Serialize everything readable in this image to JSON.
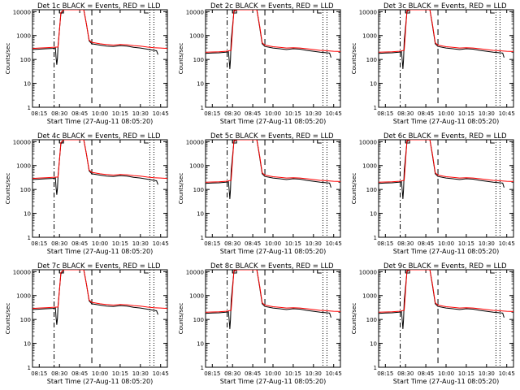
{
  "chart_data": [
    {
      "title": "Det 1c BLACK = Events, RED = LLD",
      "type": "line",
      "variant": "a"
    },
    {
      "title": "Det 2c BLACK = Events, RED = LLD",
      "type": "line",
      "variant": "b"
    },
    {
      "title": "Det 3c BLACK = Events, RED = LLD",
      "type": "line",
      "variant": "b"
    },
    {
      "title": "Det 4c BLACK = Events, RED = LLD",
      "type": "line",
      "variant": "a"
    },
    {
      "title": "Det 5c BLACK = Events, RED = LLD",
      "type": "line",
      "variant": "b"
    },
    {
      "title": "Det 6c BLACK = Events, RED = LLD",
      "type": "line",
      "variant": "b"
    },
    {
      "title": "Det 7c BLACK = Events, RED = LLD",
      "type": "line",
      "variant": "a"
    },
    {
      "title": "Det 8c BLACK = Events, RED = LLD",
      "type": "line",
      "variant": "b"
    },
    {
      "title": "Det 9c BLACK = Events, RED = LLD",
      "type": "line",
      "variant": "b"
    }
  ],
  "shared": {
    "ylabel": "Counts/sec",
    "xlabel": "Start Time (27-Aug-11 08:05:20)",
    "yscale": "log",
    "ylim": [
      1,
      12000
    ],
    "y_ticks": [
      "1",
      "10",
      "100",
      "1000",
      "10000"
    ],
    "x_ticks": [
      "08:15",
      "08:30",
      "08:45",
      "10:00",
      "10:15",
      "10:30",
      "10:45"
    ],
    "colors": {
      "events": "#000000",
      "lld": "#ff0000"
    }
  },
  "series_profiles": {
    "a": {
      "events": [
        [
          0,
          260
        ],
        [
          0.05,
          270
        ],
        [
          0.1,
          280
        ],
        [
          0.15,
          290
        ],
        [
          0.17,
          300
        ],
        [
          0.175,
          120
        ],
        [
          0.18,
          60
        ],
        [
          0.185,
          110
        ],
        [
          0.19,
          400
        ],
        [
          0.21,
          8000
        ],
        [
          0.23,
          15000
        ],
        [
          0.38,
          15000
        ],
        [
          0.4,
          3000
        ],
        [
          0.42,
          600
        ],
        [
          0.44,
          450
        ],
        [
          0.5,
          400
        ],
        [
          0.55,
          360
        ],
        [
          0.6,
          350
        ],
        [
          0.65,
          380
        ],
        [
          0.7,
          360
        ],
        [
          0.75,
          320
        ],
        [
          0.8,
          300
        ],
        [
          0.85,
          270
        ],
        [
          0.9,
          240
        ],
        [
          0.92,
          230
        ],
        [
          0.93,
          160
        ]
      ],
      "lld": [
        [
          0,
          290
        ],
        [
          0.05,
          300
        ],
        [
          0.1,
          310
        ],
        [
          0.15,
          320
        ],
        [
          0.19,
          330
        ],
        [
          0.21,
          9000
        ],
        [
          0.23,
          15000
        ],
        [
          0.38,
          15000
        ],
        [
          0.4,
          3000
        ],
        [
          0.42,
          650
        ],
        [
          0.44,
          520
        ],
        [
          0.5,
          450
        ],
        [
          0.55,
          420
        ],
        [
          0.6,
          400
        ],
        [
          0.65,
          420
        ],
        [
          0.7,
          410
        ],
        [
          0.75,
          380
        ],
        [
          0.8,
          360
        ],
        [
          0.85,
          330
        ],
        [
          0.9,
          310
        ],
        [
          0.95,
          300
        ],
        [
          1,
          290
        ]
      ]
    },
    "b": {
      "events": [
        [
          0,
          180
        ],
        [
          0.05,
          185
        ],
        [
          0.1,
          190
        ],
        [
          0.15,
          200
        ],
        [
          0.17,
          210
        ],
        [
          0.175,
          90
        ],
        [
          0.18,
          40
        ],
        [
          0.185,
          100
        ],
        [
          0.19,
          600
        ],
        [
          0.21,
          10000
        ],
        [
          0.23,
          15000
        ],
        [
          0.38,
          15000
        ],
        [
          0.4,
          2500
        ],
        [
          0.42,
          450
        ],
        [
          0.44,
          350
        ],
        [
          0.5,
          300
        ],
        [
          0.55,
          280
        ],
        [
          0.6,
          260
        ],
        [
          0.65,
          280
        ],
        [
          0.7,
          270
        ],
        [
          0.75,
          240
        ],
        [
          0.8,
          220
        ],
        [
          0.85,
          200
        ],
        [
          0.9,
          190
        ],
        [
          0.92,
          185
        ],
        [
          0.93,
          120
        ]
      ],
      "lld": [
        [
          0,
          200
        ],
        [
          0.05,
          205
        ],
        [
          0.1,
          210
        ],
        [
          0.15,
          220
        ],
        [
          0.19,
          240
        ],
        [
          0.21,
          11000
        ],
        [
          0.23,
          15000
        ],
        [
          0.38,
          15000
        ],
        [
          0.4,
          2800
        ],
        [
          0.42,
          500
        ],
        [
          0.44,
          400
        ],
        [
          0.5,
          340
        ],
        [
          0.55,
          320
        ],
        [
          0.6,
          300
        ],
        [
          0.65,
          310
        ],
        [
          0.7,
          300
        ],
        [
          0.75,
          280
        ],
        [
          0.8,
          260
        ],
        [
          0.85,
          240
        ],
        [
          0.9,
          230
        ],
        [
          0.95,
          220
        ],
        [
          1,
          215
        ]
      ]
    }
  }
}
